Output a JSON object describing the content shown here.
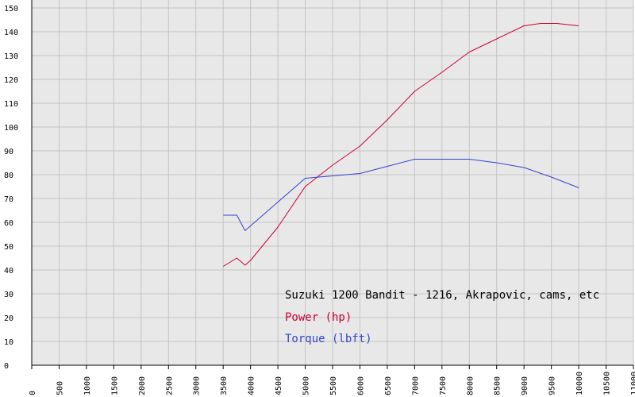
{
  "colors": {
    "background": "#e8e8e8",
    "grid": "#c4c4c4",
    "axis": "#000000",
    "power": "#cc0033",
    "torque": "#3344cc",
    "title": "#000000"
  },
  "chart_data": {
    "type": "line",
    "title": "Suzuki 1200 Bandit - 1216, Akrapovic, cams, etc",
    "xlabel": "",
    "ylabel": "",
    "xlim": [
      0,
      11000
    ],
    "ylim": [
      0,
      150
    ],
    "xticks": [
      0,
      500,
      1000,
      1500,
      2000,
      2500,
      3000,
      3500,
      4000,
      4500,
      5000,
      5500,
      6000,
      6500,
      7000,
      7500,
      8000,
      8500,
      9000,
      9500,
      10000,
      10500,
      11000
    ],
    "yticks": [
      0,
      10,
      20,
      30,
      40,
      50,
      60,
      70,
      80,
      90,
      100,
      110,
      120,
      130,
      140,
      150
    ],
    "grid": true,
    "legend_position": "bottom-right",
    "series": [
      {
        "name": "Power (hp)",
        "color": "#cc0033",
        "x": [
          3500,
          3750,
          3900,
          4000,
          4500,
          5000,
          5500,
          6000,
          6500,
          7000,
          7500,
          8000,
          8500,
          9000,
          9300,
          9600,
          10000
        ],
        "y": [
          41.5,
          45,
          42,
          44,
          58,
          75,
          84,
          92,
          103,
          115,
          123,
          131.5,
          137,
          142.5,
          143.5,
          143.5,
          142.5
        ]
      },
      {
        "name": "Torque (lbft)",
        "color": "#3344cc",
        "x": [
          3500,
          3750,
          3900,
          4000,
          4500,
          5000,
          5500,
          6000,
          6500,
          7000,
          7500,
          8000,
          8500,
          9000,
          9500,
          10000
        ],
        "y": [
          63,
          63,
          56.5,
          58.5,
          68.5,
          78.5,
          79.5,
          80.5,
          83.5,
          86.5,
          86.5,
          86.5,
          85,
          83,
          79,
          74.5
        ]
      }
    ]
  }
}
